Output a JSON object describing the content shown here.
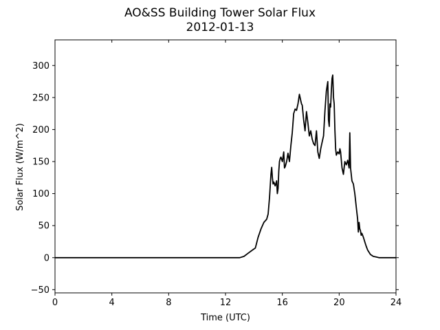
{
  "chart_data": {
    "type": "line",
    "title": "AO&SS Building Tower Solar Flux",
    "subtitle": "2012-01-13",
    "xlabel": "Time (UTC)",
    "ylabel": "Solar Flux (W/m^2)",
    "xlim": [
      0,
      24
    ],
    "ylim": [
      -55,
      340
    ],
    "xticks": [
      0,
      4,
      8,
      12,
      16,
      20,
      24
    ],
    "yticks": [
      -50,
      0,
      50,
      100,
      150,
      200,
      250,
      300
    ],
    "grid": false,
    "series_color": "#000000",
    "series": [
      {
        "x": [
          0,
          13.0,
          13.3,
          13.6,
          13.9,
          14.1,
          14.3,
          14.5,
          14.7,
          14.9,
          15.0,
          15.1,
          15.2,
          15.25,
          15.3,
          15.35,
          15.4,
          15.5,
          15.6,
          15.65,
          15.7,
          15.75,
          15.8,
          15.85,
          15.9,
          16.0,
          16.1,
          16.15,
          16.2,
          16.3,
          16.4,
          16.5,
          16.6,
          16.7,
          16.8,
          16.9,
          17.0,
          17.1,
          17.2,
          17.3,
          17.35,
          17.4,
          17.5,
          17.6,
          17.7,
          17.8,
          17.9,
          18.0,
          18.1,
          18.2,
          18.3,
          18.4,
          18.5,
          18.6,
          18.7,
          18.8,
          18.9,
          19.0,
          19.1,
          19.2,
          19.25,
          19.3,
          19.35,
          19.4,
          19.45,
          19.5,
          19.55,
          19.6,
          19.65,
          19.7,
          19.75,
          19.8,
          19.9,
          20.0,
          20.05,
          20.1,
          20.2,
          20.3,
          20.4,
          20.5,
          20.6,
          20.7,
          20.75,
          20.8,
          20.85,
          20.9,
          21.0,
          21.1,
          21.2,
          21.3,
          21.35,
          21.4,
          21.45,
          21.5,
          21.55,
          21.6,
          21.7,
          21.8,
          21.9,
          22.0,
          22.2,
          22.4,
          22.6,
          22.8,
          23.0,
          23.3,
          23.6,
          24
        ],
        "values": [
          0,
          0,
          2,
          7,
          12,
          15,
          32,
          45,
          55,
          60,
          68,
          95,
          130,
          141,
          125,
          115,
          118,
          112,
          120,
          100,
          108,
          135,
          150,
          155,
          157,
          150,
          165,
          140,
          142,
          150,
          163,
          150,
          175,
          195,
          225,
          232,
          230,
          240,
          255,
          245,
          240,
          238,
          215,
          198,
          228,
          210,
          190,
          198,
          185,
          178,
          175,
          198,
          165,
          155,
          170,
          180,
          190,
          230,
          260,
          275,
          215,
          205,
          240,
          235,
          262,
          280,
          285,
          250,
          240,
          200,
          170,
          160,
          165,
          162,
          170,
          165,
          140,
          130,
          150,
          145,
          152,
          140,
          195,
          140,
          130,
          120,
          115,
          100,
          80,
          60,
          40,
          55,
          45,
          42,
          35,
          38,
          32,
          25,
          18,
          12,
          5,
          2,
          1,
          0,
          0,
          0,
          0,
          0
        ]
      }
    ]
  }
}
